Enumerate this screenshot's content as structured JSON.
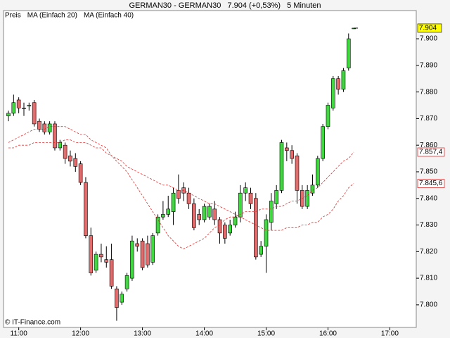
{
  "chart_data": {
    "type": "candlestick",
    "title": "GERMAN30 - GERMAN30   7.904 (+0,53%)   5 Minuten",
    "footer": "© IT-Finance.com",
    "x": [
      "10:50",
      "10:55",
      "11:00",
      "11:05",
      "11:10",
      "11:15",
      "11:20",
      "11:25",
      "11:30",
      "11:35",
      "11:40",
      "11:45",
      "11:50",
      "11:55",
      "12:00",
      "12:05",
      "12:10",
      "12:15",
      "12:20",
      "12:25",
      "12:30",
      "12:35",
      "12:40",
      "12:45",
      "12:50",
      "12:55",
      "13:00",
      "13:05",
      "13:10",
      "13:15",
      "13:20",
      "13:25",
      "13:30",
      "13:35",
      "13:40",
      "13:45",
      "13:50",
      "13:55",
      "14:00",
      "14:05",
      "14:10",
      "14:15",
      "14:20",
      "14:25",
      "14:30",
      "14:35",
      "14:40",
      "14:45",
      "14:50",
      "14:55",
      "15:00",
      "15:05",
      "15:10",
      "15:15",
      "15:20",
      "15:25",
      "15:30",
      "15:35",
      "15:40",
      "15:45",
      "15:50",
      "15:55",
      "16:00",
      "16:05",
      "16:10",
      "16:15",
      "16:20",
      "16:25"
    ],
    "series": [
      {
        "name": "Preis",
        "up_color": "#3fd83f",
        "down_color": "#e46b6b",
        "open": [
          7.871,
          7.872,
          7.877,
          7.874,
          7.875,
          7.876,
          7.869,
          7.868,
          7.865,
          7.868,
          7.859,
          7.86,
          7.856,
          7.855,
          7.853,
          7.846,
          7.826,
          7.813,
          7.819,
          7.817,
          7.817,
          7.806,
          7.801,
          7.806,
          7.81,
          7.823,
          7.824,
          7.823,
          7.816,
          7.827,
          7.833,
          7.834,
          7.835,
          7.843,
          7.844,
          7.842,
          7.838,
          7.834,
          7.832,
          7.833,
          7.836,
          7.832,
          7.83,
          7.827,
          7.83,
          7.833,
          7.842,
          7.842,
          7.84,
          7.819,
          7.822,
          7.831,
          7.838,
          7.843,
          7.859,
          7.858,
          7.856,
          7.843,
          7.837,
          7.842,
          7.845,
          7.855,
          7.867,
          7.874,
          7.885,
          7.881,
          7.889,
          7.904
        ],
        "high": [
          7.873,
          7.879,
          7.878,
          7.876,
          7.876,
          7.877,
          7.87,
          7.869,
          7.869,
          7.869,
          7.862,
          7.861,
          7.858,
          7.857,
          7.854,
          7.848,
          7.829,
          7.82,
          7.823,
          7.822,
          7.823,
          7.807,
          7.805,
          7.812,
          7.826,
          7.825,
          7.825,
          7.826,
          7.827,
          7.834,
          7.839,
          7.841,
          7.844,
          7.849,
          7.846,
          7.844,
          7.84,
          7.836,
          7.838,
          7.838,
          7.839,
          7.833,
          7.831,
          7.832,
          7.835,
          7.845,
          7.846,
          7.844,
          7.842,
          7.824,
          7.834,
          7.842,
          7.845,
          7.862,
          7.861,
          7.86,
          7.857,
          7.845,
          7.845,
          7.849,
          7.856,
          7.868,
          7.876,
          7.886,
          7.886,
          7.889,
          7.902,
          7.904
        ],
        "low": [
          7.869,
          7.871,
          7.872,
          7.871,
          7.873,
          7.867,
          7.865,
          7.864,
          7.864,
          7.858,
          7.858,
          7.853,
          7.852,
          7.85,
          7.845,
          7.825,
          7.811,
          7.812,
          7.816,
          7.814,
          7.806,
          7.794,
          7.8,
          7.805,
          7.809,
          7.82,
          7.813,
          7.814,
          7.815,
          7.826,
          7.832,
          7.833,
          7.83,
          7.838,
          7.839,
          7.836,
          7.828,
          7.83,
          7.831,
          7.832,
          7.83,
          7.823,
          7.823,
          7.826,
          7.829,
          7.831,
          7.839,
          7.836,
          7.817,
          7.818,
          7.812,
          7.828,
          7.836,
          7.842,
          7.854,
          7.853,
          7.838,
          7.836,
          7.836,
          7.841,
          7.844,
          7.854,
          7.866,
          7.873,
          7.879,
          7.88,
          7.888,
          7.904
        ],
        "close": [
          7.872,
          7.876,
          7.874,
          7.874,
          7.875,
          7.868,
          7.866,
          7.865,
          7.868,
          7.859,
          7.861,
          7.855,
          7.854,
          7.852,
          7.846,
          7.826,
          7.812,
          7.819,
          7.818,
          7.816,
          7.807,
          7.799,
          7.804,
          7.811,
          7.824,
          7.822,
          7.814,
          7.815,
          7.826,
          7.833,
          7.834,
          7.836,
          7.842,
          7.84,
          7.842,
          7.838,
          7.829,
          7.832,
          7.837,
          7.837,
          7.832,
          7.827,
          7.825,
          7.83,
          7.833,
          7.842,
          7.844,
          7.838,
          7.818,
          7.822,
          7.832,
          7.839,
          7.843,
          7.861,
          7.858,
          7.855,
          7.843,
          7.837,
          7.843,
          7.845,
          7.855,
          7.867,
          7.875,
          7.885,
          7.881,
          7.888,
          7.9,
          7.904
        ]
      },
      {
        "name": "MA (Einfach 20)",
        "color": "#e03030",
        "values": [
          7.861,
          7.862,
          7.863,
          7.864,
          7.865,
          7.866,
          7.866,
          7.866,
          7.867,
          7.867,
          7.867,
          7.867,
          7.866,
          7.865,
          7.864,
          7.864,
          7.862,
          7.861,
          7.86,
          7.859,
          7.856,
          7.854,
          7.852,
          7.85,
          7.847,
          7.844,
          7.841,
          7.838,
          7.835,
          7.832,
          7.829,
          7.826,
          7.824,
          7.822,
          7.821,
          7.822,
          7.823,
          7.824,
          7.825,
          7.827,
          7.829,
          7.83,
          7.832,
          7.833,
          7.833,
          7.834,
          7.835,
          7.835,
          7.835,
          7.836,
          7.836,
          7.836,
          7.837,
          7.837,
          7.838,
          7.839,
          7.839,
          7.84,
          7.841,
          7.843,
          7.844,
          7.846,
          7.848,
          7.85,
          7.852,
          7.854,
          7.855,
          7.8574
        ],
        "last_label": {
          "value": 7.8574,
          "label": "7.857,4"
        }
      },
      {
        "name": "MA (Einfach 40)",
        "color": "#e03030",
        "values": [
          7.859,
          7.859,
          7.86,
          7.86,
          7.86,
          7.861,
          7.861,
          7.861,
          7.861,
          7.861,
          7.861,
          7.862,
          7.862,
          7.861,
          7.861,
          7.861,
          7.86,
          7.859,
          7.859,
          7.857,
          7.856,
          7.855,
          7.854,
          7.852,
          7.851,
          7.85,
          7.849,
          7.848,
          7.847,
          7.846,
          7.845,
          7.845,
          7.844,
          7.843,
          7.843,
          7.842,
          7.841,
          7.84,
          7.839,
          7.838,
          7.838,
          7.837,
          7.836,
          7.835,
          7.834,
          7.833,
          7.832,
          7.831,
          7.83,
          7.829,
          7.828,
          7.828,
          7.828,
          7.828,
          7.829,
          7.829,
          7.829,
          7.83,
          7.83,
          7.831,
          7.831,
          7.833,
          7.834,
          7.836,
          7.839,
          7.841,
          7.844,
          7.8456
        ],
        "last_label": {
          "value": 7.8456,
          "label": "7.845,6"
        }
      }
    ],
    "last_price": 7.904,
    "last_price_color": "#ffff00",
    "ylim": [
      7.7915,
      7.9106
    ],
    "yticks": [
      {
        "value": 7.8,
        "label": "7.800"
      },
      {
        "value": 7.81,
        "label": "7.810"
      },
      {
        "value": 7.82,
        "label": "7.820"
      },
      {
        "value": 7.83,
        "label": "7.830"
      },
      {
        "value": 7.84,
        "label": "7.840"
      },
      {
        "value": 7.85,
        "label": "7.850"
      },
      {
        "value": 7.86,
        "label": "7.860"
      },
      {
        "value": 7.87,
        "label": "7.870"
      },
      {
        "value": 7.88,
        "label": "7.880"
      },
      {
        "value": 7.89,
        "label": "7.890"
      },
      {
        "value": 7.9,
        "label": "7.900"
      }
    ],
    "xticks": [
      "11:00",
      "12:00",
      "13:00",
      "14:00",
      "15:00",
      "16:00",
      "17:00"
    ],
    "grid": false
  }
}
